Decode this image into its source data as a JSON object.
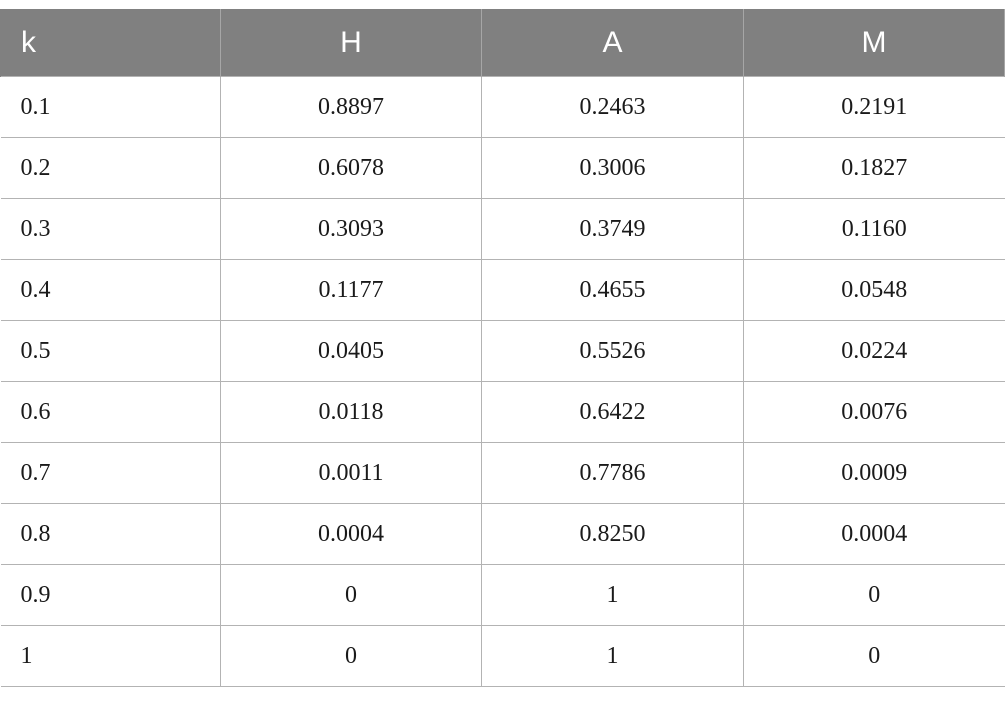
{
  "table": {
    "headers": [
      "k",
      "H",
      "A",
      "M"
    ],
    "rows": [
      [
        "0.1",
        "0.8897",
        "0.2463",
        "0.2191"
      ],
      [
        "0.2",
        "0.6078",
        "0.3006",
        "0.1827"
      ],
      [
        "0.3",
        "0.3093",
        "0.3749",
        "0.1160"
      ],
      [
        "0.4",
        "0.1177",
        "0.4655",
        "0.0548"
      ],
      [
        "0.5",
        "0.0405",
        "0.5526",
        "0.0224"
      ],
      [
        "0.6",
        "0.0118",
        "0.6422",
        "0.0076"
      ],
      [
        "0.7",
        "0.0011",
        "0.7786",
        "0.0009"
      ],
      [
        "0.8",
        "0.0004",
        "0.8250",
        "0.0004"
      ],
      [
        "0.9",
        "0",
        "1",
        "0"
      ],
      [
        "1",
        "0",
        "1",
        "0"
      ]
    ]
  },
  "colors": {
    "header_bg": "#808080",
    "header_text": "#ffffff",
    "border": "#b3b3b3"
  }
}
